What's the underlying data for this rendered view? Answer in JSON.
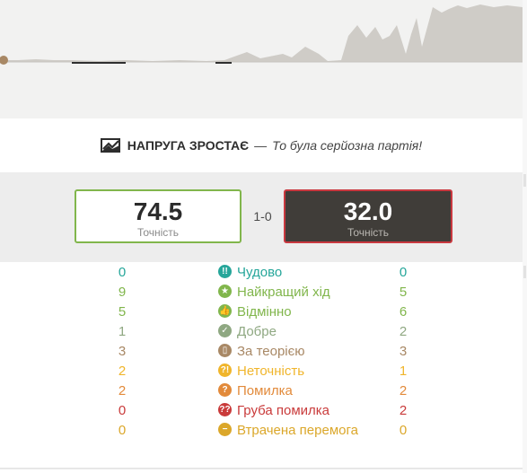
{
  "headline": {
    "icon": "graph-spike-icon",
    "title": "НАПРУГА ЗРОСТАЄ",
    "dash": "—",
    "subtitle": "То була серйозна партія!"
  },
  "accuracy": {
    "white": {
      "value": "74.5",
      "label": "Точність",
      "border_color": "#81b64c"
    },
    "black": {
      "value": "32.0",
      "label": "Точність",
      "border_color": "#c9383f"
    },
    "score": "1-0"
  },
  "classifications": [
    {
      "key": "brilliant",
      "label": "Чудово",
      "white": "0",
      "black": "0",
      "color": "#26a69a",
      "icon": "!!"
    },
    {
      "key": "best",
      "label": "Найкращий хід",
      "white": "9",
      "black": "5",
      "color": "#81b64c",
      "icon": "★"
    },
    {
      "key": "excellent",
      "label": "Відмінно",
      "white": "5",
      "black": "6",
      "color": "#81b64c",
      "icon": "👍"
    },
    {
      "key": "good",
      "label": "Добре",
      "white": "1",
      "black": "2",
      "color": "#8fa882",
      "icon": "✓"
    },
    {
      "key": "book",
      "label": "За теорією",
      "white": "3",
      "black": "3",
      "color": "#a88865",
      "icon": "▯"
    },
    {
      "key": "inaccuracy",
      "label": "Неточність",
      "white": "2",
      "black": "1",
      "color": "#f0b52b",
      "icon": "?!"
    },
    {
      "key": "mistake",
      "label": "Помилка",
      "white": "2",
      "black": "2",
      "color": "#e28a3a",
      "icon": "?"
    },
    {
      "key": "blunder",
      "label": "Груба помилка",
      "white": "0",
      "black": "2",
      "color": "#c93a3a",
      "icon": "??"
    },
    {
      "key": "miss",
      "label": "Втрачена перемога",
      "white": "0",
      "black": "0",
      "color": "#dba72a",
      "icon": "−"
    }
  ]
}
